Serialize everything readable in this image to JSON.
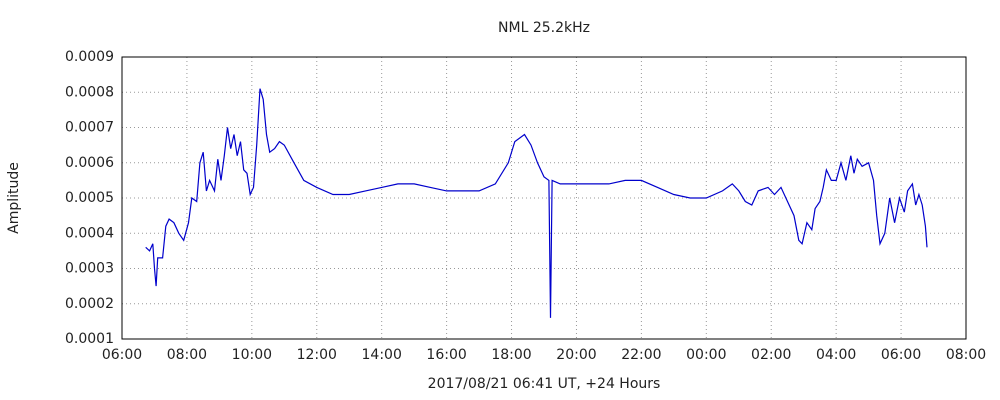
{
  "chart_data": {
    "type": "line",
    "title": "NML 25.2kHz",
    "xlabel": "2017/08/21 06:41 UT, +24 Hours",
    "ylabel": "Amplitude",
    "xlim": [
      6,
      32
    ],
    "xticks": [
      {
        "value": 6,
        "label": "06:00"
      },
      {
        "value": 8,
        "label": "08:00"
      },
      {
        "value": 10,
        "label": "10:00"
      },
      {
        "value": 12,
        "label": "12:00"
      },
      {
        "value": 14,
        "label": "14:00"
      },
      {
        "value": 16,
        "label": "16:00"
      },
      {
        "value": 18,
        "label": "18:00"
      },
      {
        "value": 20,
        "label": "20:00"
      },
      {
        "value": 22,
        "label": "22:00"
      },
      {
        "value": 24,
        "label": "00:00"
      },
      {
        "value": 26,
        "label": "02:00"
      },
      {
        "value": 28,
        "label": "04:00"
      },
      {
        "value": 30,
        "label": "06:00"
      },
      {
        "value": 32,
        "label": "08:00"
      }
    ],
    "ylim": [
      0.0001,
      0.0009
    ],
    "yticks": [
      0.0001,
      0.0002,
      0.0003,
      0.0004,
      0.0005,
      0.0006,
      0.0007,
      0.0008,
      0.0009
    ],
    "grid": true,
    "color": "#0000cc",
    "x": [
      6.73,
      6.85,
      6.95,
      7.0,
      7.05,
      7.1,
      7.25,
      7.35,
      7.45,
      7.6,
      7.75,
      7.9,
      8.05,
      8.15,
      8.3,
      8.4,
      8.5,
      8.6,
      8.7,
      8.85,
      8.95,
      9.05,
      9.15,
      9.25,
      9.35,
      9.45,
      9.55,
      9.65,
      9.75,
      9.85,
      9.95,
      10.05,
      10.15,
      10.25,
      10.35,
      10.45,
      10.55,
      10.7,
      10.85,
      11.0,
      11.3,
      11.6,
      12.0,
      12.5,
      13.0,
      13.5,
      14.0,
      14.5,
      15.0,
      15.5,
      16.0,
      16.5,
      17.0,
      17.5,
      17.9,
      18.1,
      18.4,
      18.6,
      18.8,
      19.0,
      19.15,
      19.2,
      19.25,
      19.5,
      20.0,
      20.5,
      21.0,
      21.5,
      22.0,
      22.5,
      23.0,
      23.5,
      24.0,
      24.5,
      24.8,
      25.0,
      25.2,
      25.4,
      25.6,
      25.9,
      26.1,
      26.3,
      26.5,
      26.7,
      26.85,
      26.95,
      27.1,
      27.25,
      27.35,
      27.5,
      27.6,
      27.7,
      27.85,
      28.0,
      28.15,
      28.3,
      28.45,
      28.55,
      28.65,
      28.8,
      29.0,
      29.15,
      29.25,
      29.35,
      29.5,
      29.65,
      29.8,
      29.95,
      30.1,
      30.2,
      30.35,
      30.45,
      30.55,
      30.65,
      30.75,
      30.8
    ],
    "values": [
      0.00036,
      0.00035,
      0.00037,
      0.0003,
      0.00025,
      0.00033,
      0.00033,
      0.00042,
      0.00044,
      0.00043,
      0.0004,
      0.00038,
      0.00043,
      0.0005,
      0.00049,
      0.0006,
      0.00063,
      0.00052,
      0.00055,
      0.00052,
      0.00061,
      0.00055,
      0.00062,
      0.0007,
      0.00064,
      0.00068,
      0.00062,
      0.00066,
      0.00058,
      0.00057,
      0.00051,
      0.00053,
      0.00065,
      0.00081,
      0.00078,
      0.00068,
      0.00063,
      0.00064,
      0.00066,
      0.00065,
      0.0006,
      0.00055,
      0.00053,
      0.00051,
      0.00051,
      0.00052,
      0.00053,
      0.00054,
      0.00054,
      0.00053,
      0.00052,
      0.00052,
      0.00052,
      0.00054,
      0.0006,
      0.00066,
      0.00068,
      0.00065,
      0.0006,
      0.00056,
      0.00055,
      0.00016,
      0.00055,
      0.00054,
      0.00054,
      0.00054,
      0.00054,
      0.00055,
      0.00055,
      0.00053,
      0.00051,
      0.0005,
      0.0005,
      0.00052,
      0.00054,
      0.00052,
      0.00049,
      0.00048,
      0.00052,
      0.00053,
      0.00051,
      0.00053,
      0.00049,
      0.00045,
      0.00038,
      0.00037,
      0.00043,
      0.00041,
      0.00047,
      0.00049,
      0.00053,
      0.00058,
      0.00055,
      0.00055,
      0.0006,
      0.00055,
      0.00062,
      0.00057,
      0.00061,
      0.00059,
      0.0006,
      0.00055,
      0.00045,
      0.00037,
      0.0004,
      0.0005,
      0.00043,
      0.0005,
      0.00046,
      0.00052,
      0.00054,
      0.00048,
      0.00051,
      0.00048,
      0.00042,
      0.00036
    ]
  }
}
